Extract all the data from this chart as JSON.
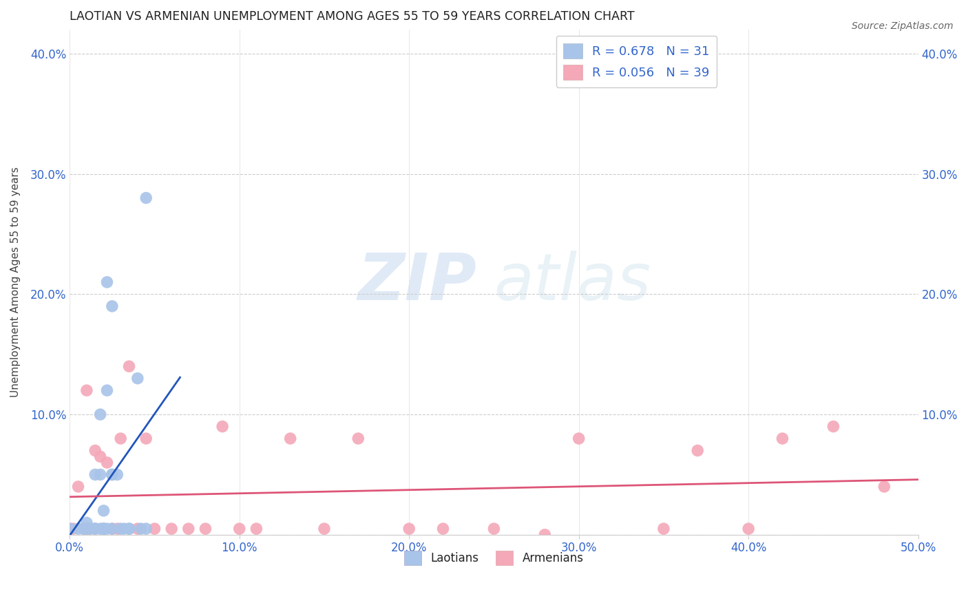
{
  "title": "LAOTIAN VS ARMENIAN UNEMPLOYMENT AMONG AGES 55 TO 59 YEARS CORRELATION CHART",
  "source": "Source: ZipAtlas.com",
  "ylabel": "Unemployment Among Ages 55 to 59 years",
  "xlim": [
    0.0,
    0.5
  ],
  "ylim": [
    0.0,
    0.42
  ],
  "xticks": [
    0.0,
    0.1,
    0.2,
    0.3,
    0.4,
    0.5
  ],
  "yticks": [
    0.0,
    0.1,
    0.2,
    0.3,
    0.4
  ],
  "xticklabels": [
    "0.0%",
    "10.0%",
    "20.0%",
    "30.0%",
    "40.0%",
    "50.0%"
  ],
  "yticklabels_left": [
    "",
    "10.0%",
    "20.0%",
    "30.0%",
    "40.0%"
  ],
  "yticklabels_right": [
    "",
    "10.0%",
    "20.0%",
    "30.0%",
    "40.0%"
  ],
  "laotian_color": "#a8c4e8",
  "armenian_color": "#f4a8b8",
  "laotian_line_color": "#2255bb",
  "armenian_line_color": "#dd5577",
  "watermark_zip": "ZIP",
  "watermark_atlas": "atlas",
  "laotian_x": [
    0.0,
    0.005,
    0.008,
    0.01,
    0.01,
    0.012,
    0.015,
    0.015,
    0.015,
    0.018,
    0.018,
    0.018,
    0.02,
    0.02,
    0.02,
    0.022,
    0.022,
    0.022,
    0.025,
    0.025,
    0.025,
    0.025,
    0.028,
    0.03,
    0.032,
    0.035,
    0.035,
    0.04,
    0.042,
    0.045,
    0.045
  ],
  "laotian_y": [
    0.005,
    0.005,
    0.005,
    0.005,
    0.01,
    0.005,
    0.005,
    0.005,
    0.05,
    0.005,
    0.05,
    0.1,
    0.005,
    0.005,
    0.02,
    0.005,
    0.12,
    0.21,
    0.005,
    0.05,
    0.05,
    0.19,
    0.05,
    0.005,
    0.005,
    0.005,
    0.005,
    0.13,
    0.005,
    0.28,
    0.005
  ],
  "armenian_x": [
    0.0,
    0.002,
    0.005,
    0.008,
    0.01,
    0.01,
    0.012,
    0.015,
    0.015,
    0.018,
    0.02,
    0.022,
    0.025,
    0.028,
    0.03,
    0.035,
    0.04,
    0.045,
    0.05,
    0.06,
    0.07,
    0.08,
    0.09,
    0.1,
    0.11,
    0.13,
    0.15,
    0.17,
    0.2,
    0.22,
    0.25,
    0.28,
    0.3,
    0.35,
    0.37,
    0.4,
    0.42,
    0.45,
    0.48
  ],
  "armenian_y": [
    0.005,
    0.005,
    0.04,
    0.005,
    0.005,
    0.12,
    0.005,
    0.005,
    0.07,
    0.065,
    0.005,
    0.06,
    0.005,
    0.005,
    0.08,
    0.14,
    0.005,
    0.08,
    0.005,
    0.005,
    0.005,
    0.005,
    0.09,
    0.005,
    0.005,
    0.08,
    0.005,
    0.08,
    0.005,
    0.005,
    0.005,
    0.0,
    0.08,
    0.005,
    0.07,
    0.005,
    0.08,
    0.09,
    0.04
  ],
  "laotian_trendline_x": [
    -0.005,
    0.065
  ],
  "armenian_trendline_x": [
    -0.005,
    0.505
  ]
}
